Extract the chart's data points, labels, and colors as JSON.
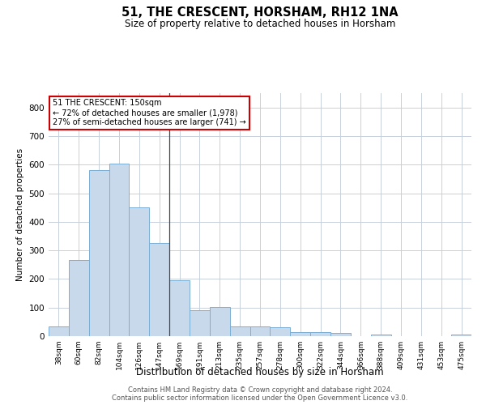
{
  "title": "51, THE CRESCENT, HORSHAM, RH12 1NA",
  "subtitle": "Size of property relative to detached houses in Horsham",
  "xlabel": "Distribution of detached houses by size in Horsham",
  "ylabel": "Number of detached properties",
  "categories": [
    "38sqm",
    "60sqm",
    "82sqm",
    "104sqm",
    "126sqm",
    "147sqm",
    "169sqm",
    "191sqm",
    "213sqm",
    "235sqm",
    "257sqm",
    "278sqm",
    "300sqm",
    "322sqm",
    "344sqm",
    "366sqm",
    "388sqm",
    "409sqm",
    "431sqm",
    "453sqm",
    "475sqm"
  ],
  "values": [
    35,
    265,
    582,
    603,
    450,
    327,
    195,
    90,
    102,
    33,
    33,
    30,
    15,
    15,
    11,
    0,
    6,
    0,
    0,
    0,
    7
  ],
  "bar_color": "#c9d9ec",
  "bar_edge_color": "#7bafd4",
  "grid_color": "#c8d0dc",
  "background_color": "#ffffff",
  "property_line_x": 5.5,
  "annotation_line1": "51 THE CRESCENT: 150sqm",
  "annotation_line2": "← 72% of detached houses are smaller (1,978)",
  "annotation_line3": "27% of semi-detached houses are larger (741) →",
  "annotation_box_color": "#ffffff",
  "annotation_box_edge_color": "#cc0000",
  "ylim": [
    0,
    850
  ],
  "yticks": [
    0,
    100,
    200,
    300,
    400,
    500,
    600,
    700,
    800
  ],
  "footer_line1": "Contains HM Land Registry data © Crown copyright and database right 2024.",
  "footer_line2": "Contains public sector information licensed under the Open Government Licence v3.0."
}
